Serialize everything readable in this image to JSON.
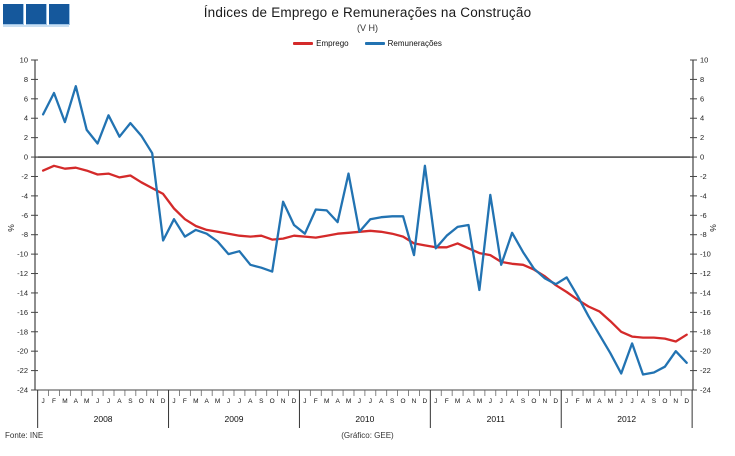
{
  "logo": {
    "square_count": 3,
    "color": "#15589c"
  },
  "header": {
    "title": "Índices de Emprego e Remunerações na Construção",
    "subtitle": "(V H)"
  },
  "legend": {
    "emprego_label": "Emprego",
    "remuneracoes_label": "Remunerações"
  },
  "footer": {
    "source": "Fonte: INE",
    "credit": "(Gráfico: GEE)"
  },
  "chart_data": {
    "type": "line",
    "title": "Índices de Emprego e Remunerações na Construção",
    "subtitle": "(V H)",
    "ylabel": "%",
    "ylabel_right": "%",
    "ylim": [
      -24,
      10
    ],
    "ytick_step": 2,
    "grid": false,
    "legend_position": "top",
    "x_years": [
      "2008",
      "2009",
      "2010",
      "2011",
      "2012"
    ],
    "month_letters": [
      "J",
      "F",
      "M",
      "A",
      "M",
      "J",
      "J",
      "A",
      "S",
      "O",
      "N",
      "D"
    ],
    "series": [
      {
        "name": "Emprego",
        "color": "#d42a2a",
        "values": [
          -1.4,
          -0.9,
          -1.2,
          -1.1,
          -1.4,
          -1.8,
          -1.7,
          -2.1,
          -1.9,
          -2.6,
          -3.2,
          -3.8,
          -5.3,
          -6.4,
          -7.1,
          -7.5,
          -7.7,
          -7.9,
          -8.1,
          -8.2,
          -8.1,
          -8.5,
          -8.4,
          -8.1,
          -8.2,
          -8.3,
          -8.1,
          -7.9,
          -7.8,
          -7.7,
          -7.6,
          -7.7,
          -7.9,
          -8.2,
          -8.9,
          -9.1,
          -9.3,
          -9.3,
          -8.9,
          -9.4,
          -9.9,
          -10.1,
          -10.8,
          -11.0,
          -11.1,
          -11.6,
          -12.3,
          -13.2,
          -13.9,
          -14.7,
          -15.4,
          -15.9,
          -16.9,
          -18.0,
          -18.5,
          -18.6,
          -18.6,
          -18.7,
          -19.0,
          -18.3
        ]
      },
      {
        "name": "Remunerações",
        "color": "#2273b2",
        "values": [
          4.4,
          6.6,
          3.6,
          7.3,
          2.8,
          1.4,
          4.3,
          2.1,
          3.5,
          2.2,
          0.4,
          -8.6,
          -6.4,
          -8.2,
          -7.5,
          -7.9,
          -8.7,
          -10.0,
          -9.7,
          -11.1,
          -11.4,
          -11.8,
          -4.6,
          -7.0,
          -7.9,
          -5.4,
          -5.5,
          -6.7,
          -1.7,
          -7.7,
          -6.4,
          -6.2,
          -6.1,
          -6.1,
          -10.1,
          -0.9,
          -9.4,
          -8.1,
          -7.2,
          -7.0,
          -13.7,
          -3.9,
          -11.1,
          -7.8,
          -9.8,
          -11.5,
          -12.5,
          -13.1,
          -12.4,
          -14.3,
          -16.4,
          -18.3,
          -20.2,
          -22.3,
          -19.2,
          -22.4,
          -22.2,
          -21.6,
          -20.0,
          -21.2
        ]
      }
    ]
  }
}
